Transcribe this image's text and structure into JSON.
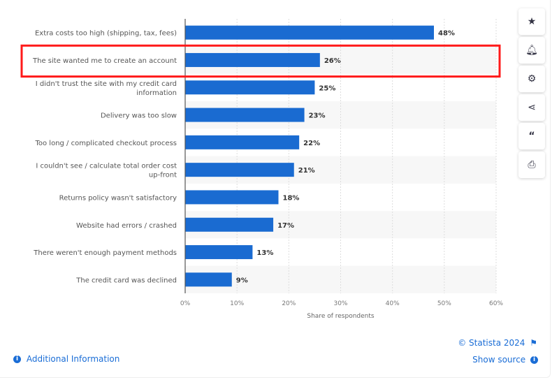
{
  "chart_data": {
    "type": "bar",
    "orientation": "horizontal",
    "categories": [
      [
        "Extra costs too high (shipping, tax, fees)"
      ],
      [
        "The site wanted me to create an account"
      ],
      [
        "I didn't trust the site with my credit card",
        "information"
      ],
      [
        "Delivery was too slow"
      ],
      [
        "Too long / complicated checkout process"
      ],
      [
        "I couldn't see / calculate total order cost",
        "up-front"
      ],
      [
        "Returns policy wasn't satisfactory"
      ],
      [
        "Website had errors / crashed"
      ],
      [
        "There weren't enough payment methods"
      ],
      [
        "The credit card was declined"
      ]
    ],
    "values": [
      48,
      26,
      25,
      23,
      22,
      21,
      18,
      17,
      13,
      9
    ],
    "data_labels": [
      "48%",
      "26%",
      "25%",
      "23%",
      "22%",
      "21%",
      "18%",
      "17%",
      "13%",
      "9%"
    ],
    "xlabel": "Share of respondents",
    "xlim": [
      0,
      60
    ],
    "xticks": [
      "0%",
      "10%",
      "20%",
      "30%",
      "40%",
      "50%",
      "60%"
    ],
    "grid": true,
    "bar_color": "#1a6bd1",
    "highlight_index": 1,
    "highlight_color": "#ff1a1a"
  },
  "sidebar": {
    "icons": [
      "star-icon",
      "bell-icon",
      "gear-icon",
      "share-icon",
      "quote-icon",
      "print-icon"
    ]
  },
  "footer": {
    "additional_info": "Additional Information",
    "copyright": "© Statista 2024",
    "show_source": "Show source",
    "info_glyph": "i"
  }
}
